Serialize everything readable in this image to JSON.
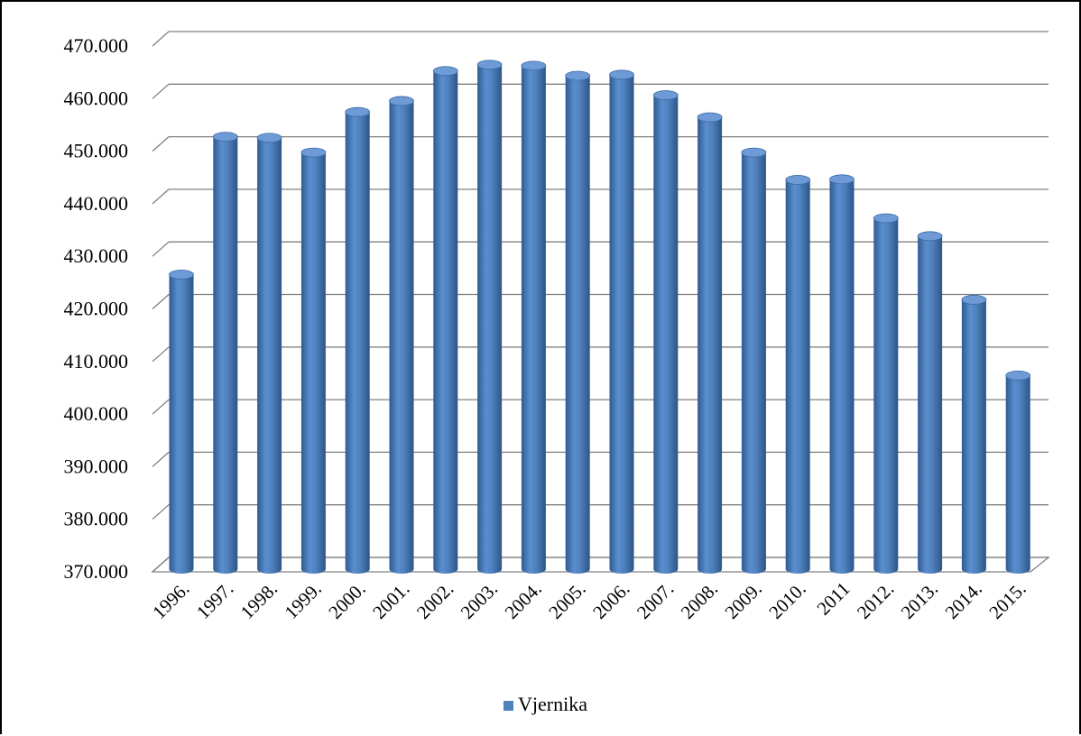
{
  "chart_data": {
    "type": "bar",
    "title": "",
    "xlabel": "",
    "ylabel": "",
    "categories": [
      "1996.",
      "1997.",
      "1998.",
      "1999.",
      "2000.",
      "2001.",
      "2002.",
      "2003.",
      "2004.",
      "2005.",
      "2006.",
      "2007.",
      "2008.",
      "2009.",
      "2010.",
      "2011",
      "2012.",
      "2013.",
      "2014.",
      "2015."
    ],
    "series": [
      {
        "name": "Vjernika",
        "color": "#4F81BD",
        "values": [
          425000,
          451200,
          451000,
          448200,
          455900,
          458000,
          463700,
          464900,
          464700,
          462800,
          463000,
          459100,
          454900,
          448200,
          443000,
          443100,
          435700,
          432300,
          420200,
          405800
        ]
      }
    ],
    "ylim": [
      370000,
      470000
    ],
    "y_ticks": [
      370000,
      380000,
      390000,
      400000,
      410000,
      420000,
      430000,
      440000,
      450000,
      460000,
      470000
    ],
    "y_tick_labels": [
      "370.000",
      "380.000",
      "390.000",
      "400.000",
      "410.000",
      "420.000",
      "430.000",
      "440.000",
      "450.000",
      "460.000",
      "470.000"
    ],
    "grid": true,
    "legend_position": "bottom",
    "style": "3d-cylinder"
  }
}
